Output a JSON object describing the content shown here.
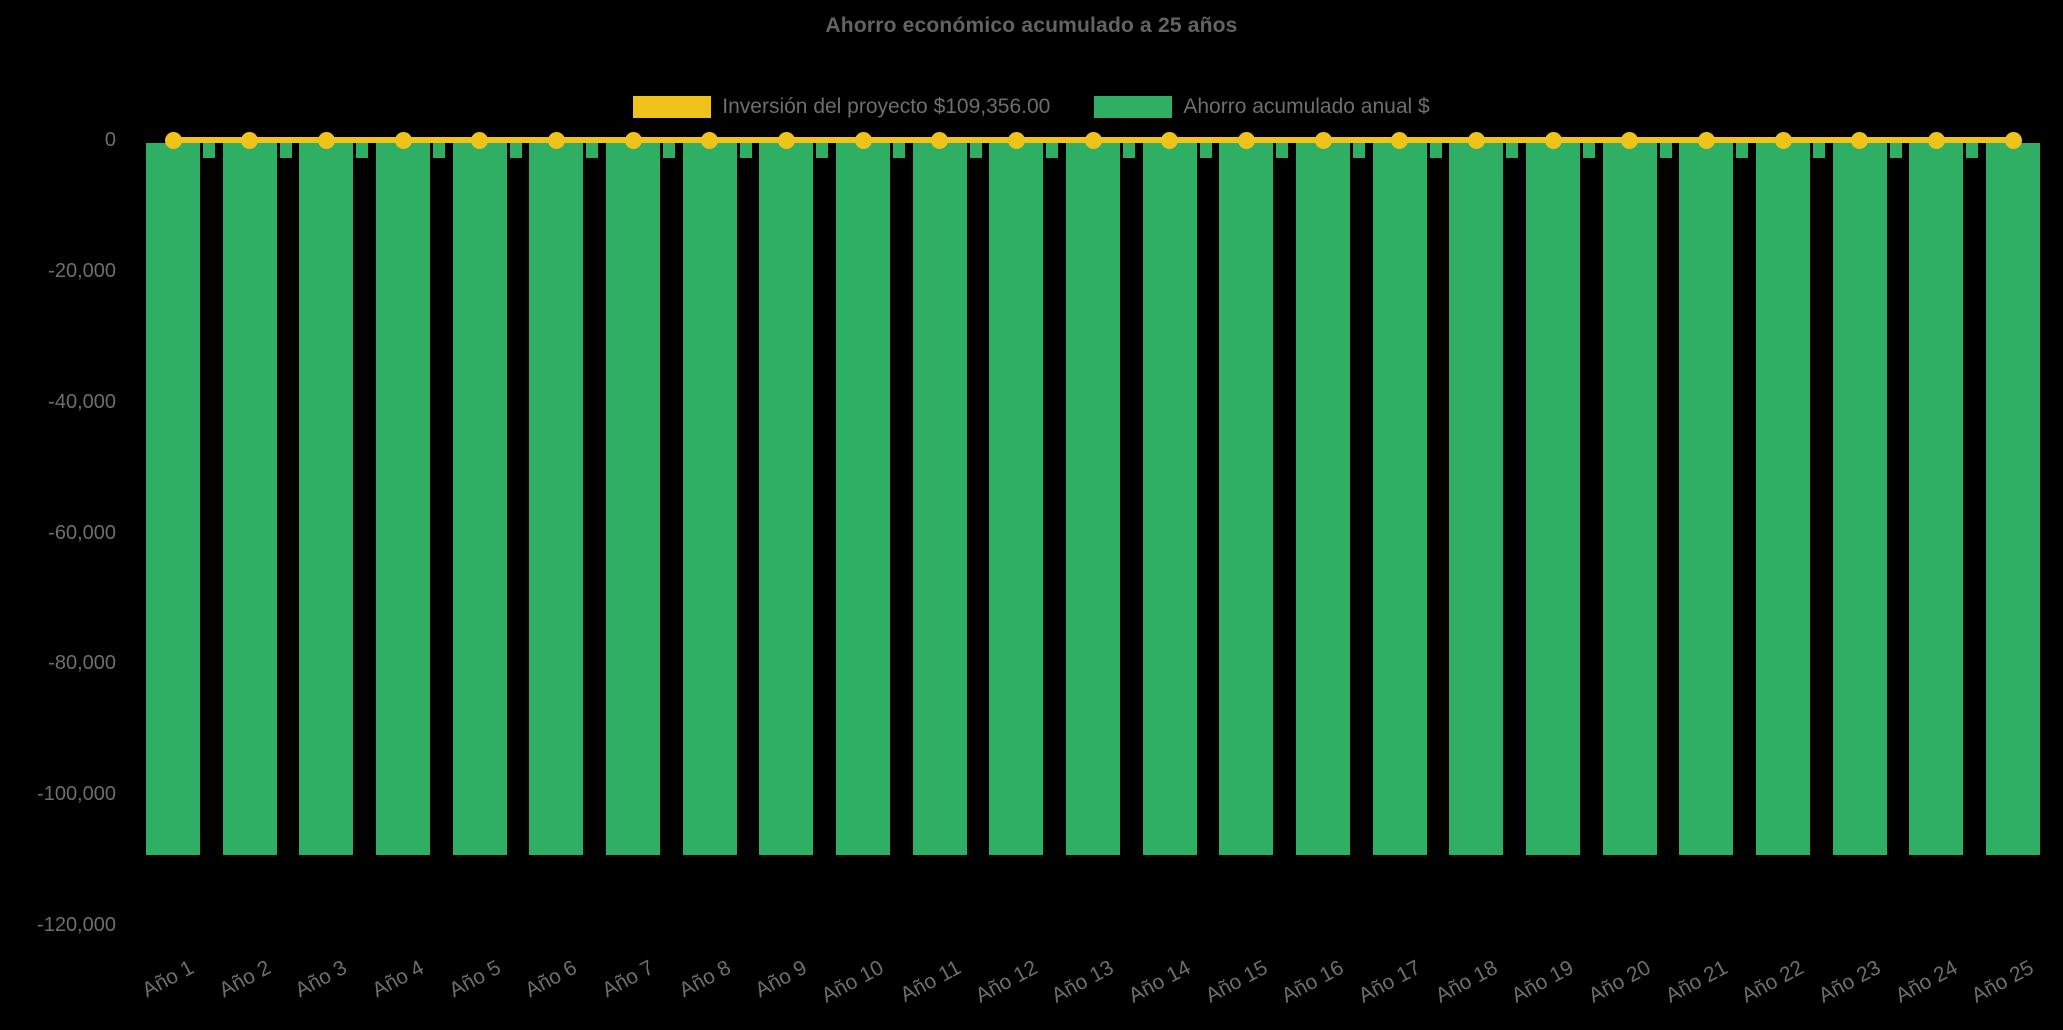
{
  "page": {
    "background": "#000000",
    "text_muted": "#6e6e6e"
  },
  "chart_data": {
    "type": "bar",
    "title": "Ahorro económico acumulado a 25 años",
    "categories": [
      "Año 1",
      "Año 2",
      "Año 3",
      "Año 4",
      "Año 5",
      "Año 6",
      "Año 7",
      "Año 8",
      "Año 9",
      "Año 10",
      "Año 11",
      "Año 12",
      "Año 13",
      "Año 14",
      "Año 15",
      "Año 16",
      "Año 17",
      "Año 18",
      "Año 19",
      "Año 20",
      "Año 21",
      "Año 22",
      "Año 23",
      "Año 24",
      "Año 25"
    ],
    "series": [
      {
        "name": "Inversión del proyecto $109,356.00",
        "type": "line",
        "color": "#efc31a",
        "values": [
          0,
          0,
          0,
          0,
          0,
          0,
          0,
          0,
          0,
          0,
          0,
          0,
          0,
          0,
          0,
          0,
          0,
          0,
          0,
          0,
          0,
          0,
          0,
          0,
          0
        ]
      },
      {
        "name": "Ahorro acumulado anual $",
        "type": "bar",
        "color": "#2eaf64",
        "values": [
          -109356,
          -109356,
          -109356,
          -109356,
          -109356,
          -109356,
          -109356,
          -109356,
          -109356,
          -109356,
          -109356,
          -109356,
          -109356,
          -109356,
          -109356,
          -109356,
          -109356,
          -109356,
          -109356,
          -109356,
          -109356,
          -109356,
          -109356,
          -109356,
          -109356
        ]
      }
    ],
    "xlabel": "",
    "ylabel": "",
    "ylim": [
      -120000,
      0
    ],
    "yticks": [
      0,
      -20000,
      -40000,
      -60000,
      -80000,
      -100000,
      -120000
    ],
    "ytick_labels": [
      "0",
      "-20,000",
      "-40,000",
      "-60,000",
      "-80,000",
      "-100,000",
      "-120,000"
    ],
    "legend_position": "top",
    "grid": false,
    "style_notes": {
      "between_bar_top_strips": true,
      "strip_color": "#2eaf64"
    }
  }
}
